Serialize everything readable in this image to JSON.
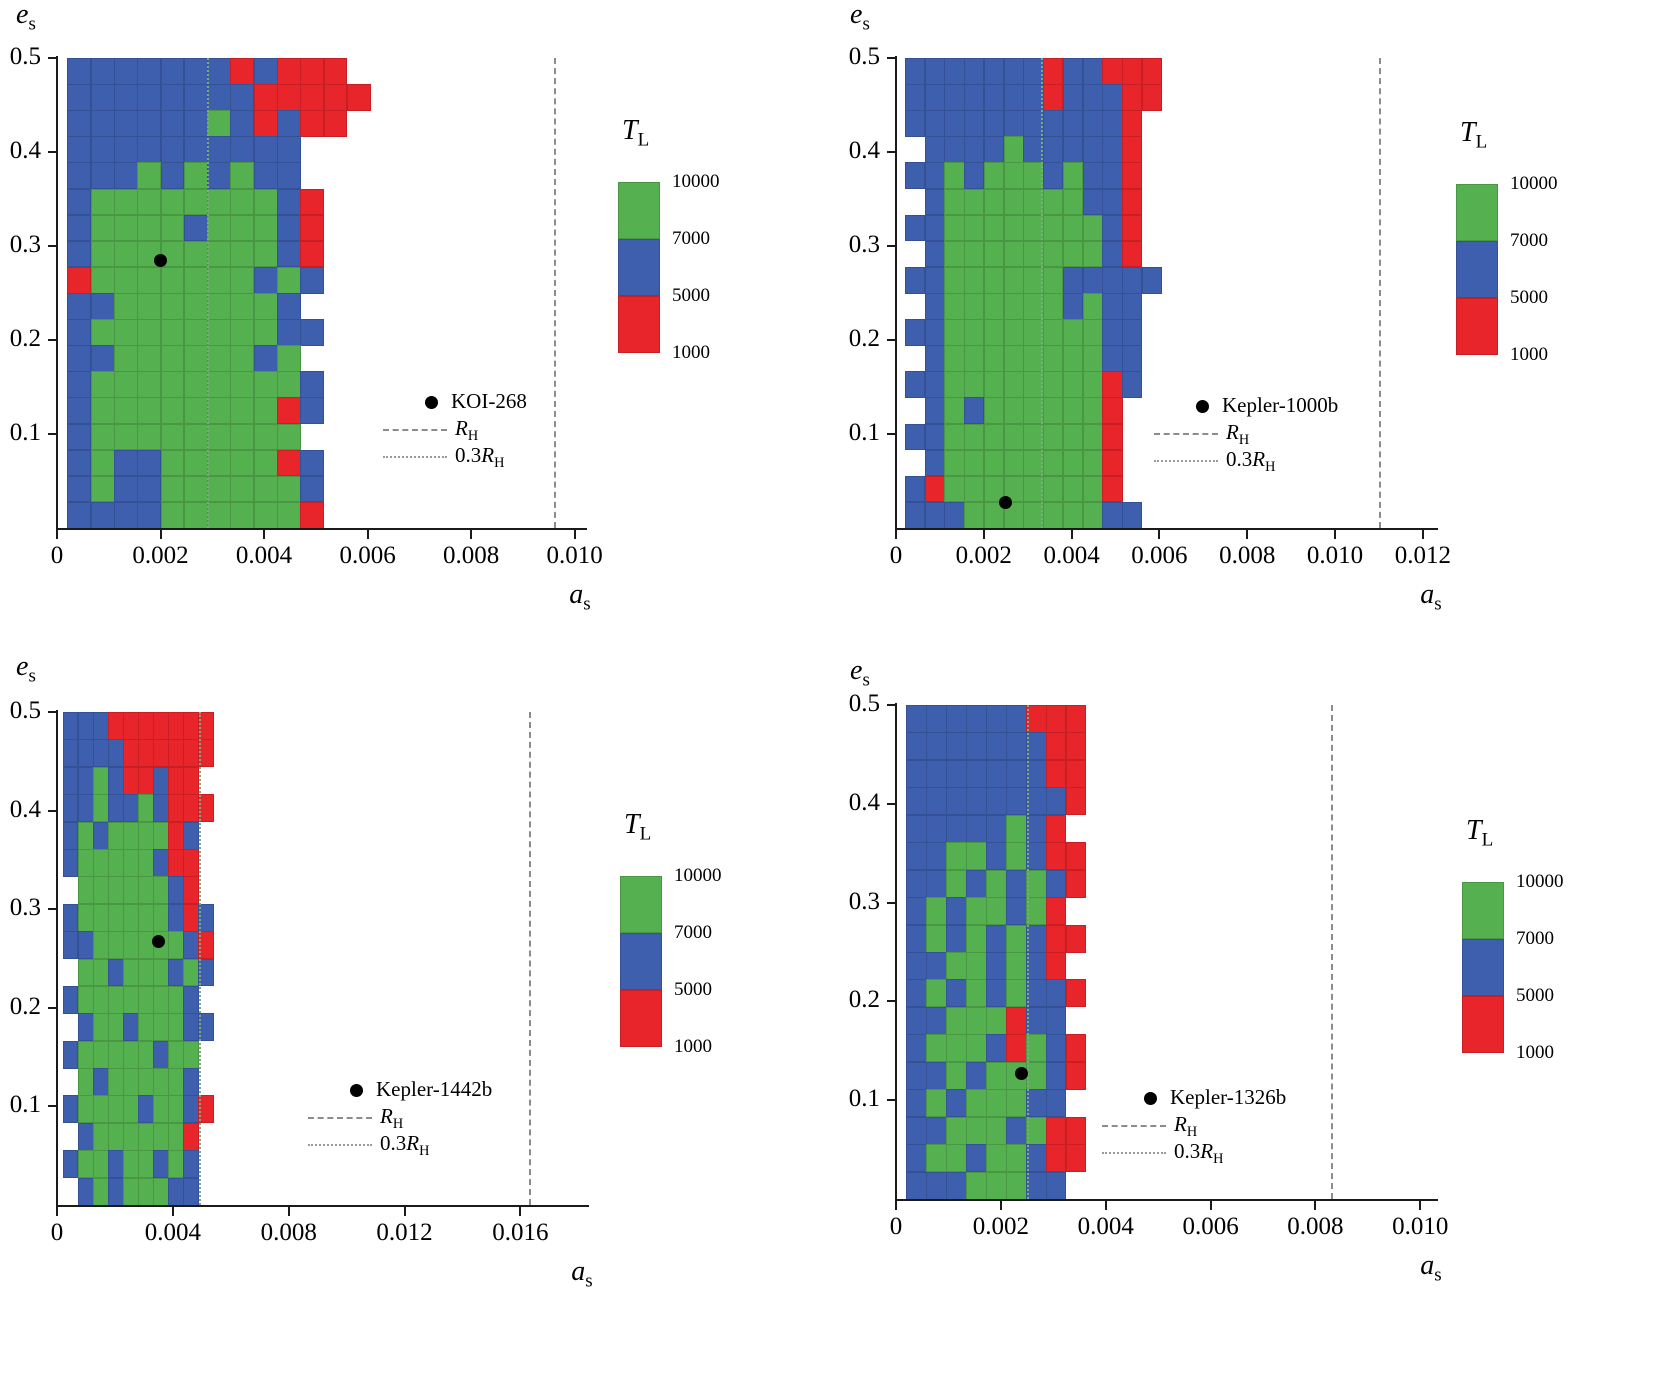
{
  "colors": {
    "background": "#ffffff",
    "green": "#55b04f",
    "blue": "#3d5fae",
    "red": "#e8252b",
    "dot": "#000000",
    "axis": "#1a1a1a",
    "rh_dash": "#8c8c8c",
    "rh03_dot": "#7fa97f"
  },
  "axis_labels": {
    "x": {
      "base": "a",
      "sub": "s"
    },
    "y": {
      "base": "e",
      "sub": "s"
    }
  },
  "legend": {
    "title": {
      "base": "T",
      "sub": "L"
    },
    "levels": [
      "10000",
      "7000",
      "5000",
      "1000"
    ],
    "segment_colors": [
      "green",
      "blue",
      "red"
    ],
    "rh": {
      "pre": "",
      "base": "R",
      "sub": "H"
    },
    "rh03": {
      "pre": "0.3",
      "base": "R",
      "sub": "H"
    }
  },
  "cell_value_ranges": {
    "3": "7000-10000 (green)",
    "2": "5000-7000 (blue)",
    "1": "1000-5000 (red)",
    "0": "none"
  },
  "chart_data": [
    {
      "type": "heatmap",
      "planet": "KOI-268",
      "xlabel": "a_s",
      "ylabel": "e_s",
      "xlim": [
        0,
        0.0102
      ],
      "ylim": [
        0,
        0.5
      ],
      "xticks": [
        0,
        0.002,
        0.004,
        0.006,
        0.008,
        0.01
      ],
      "xtick_labels": [
        "0",
        "0.002",
        "0.004",
        "0.006",
        "0.008",
        "0.010"
      ],
      "yticks": [
        0.1,
        0.2,
        0.3,
        0.4,
        0.5
      ],
      "ytick_labels": [
        "0.1",
        "0.2",
        "0.3",
        "0.4",
        "0.5"
      ],
      "point": {
        "a": 0.002,
        "e": 0.285
      },
      "r_hill": 0.0096,
      "r_hill_03": 0.0029,
      "grid": {
        "x_start": 0.0002,
        "cell_w": 0.00045,
        "rows": [
          "2222222121110",
          "2222222211111",
          "2222223212110",
          "2222222222000",
          "2223232322000",
          "2333333332100",
          "2333323332100",
          "2333333332100",
          "1333333323200",
          "2233333332000",
          "2333333332200",
          "2233333323000",
          "2333333333200",
          "2333333331200",
          "2333333333000",
          "2322333331200",
          "2322333333200",
          "2222333333100"
        ]
      }
    },
    {
      "type": "heatmap",
      "planet": "Kepler-1000b",
      "xlabel": "a_s",
      "ylabel": "e_s",
      "xlim": [
        0,
        0.0123
      ],
      "ylim": [
        0,
        0.5
      ],
      "xticks": [
        0,
        0.002,
        0.004,
        0.006,
        0.008,
        0.01,
        0.012
      ],
      "xtick_labels": [
        "0",
        "0.002",
        "0.004",
        "0.006",
        "0.008",
        "0.010",
        "0.012"
      ],
      "yticks": [
        0.1,
        0.2,
        0.3,
        0.4,
        0.5
      ],
      "ytick_labels": [
        "0.1",
        "0.2",
        "0.3",
        "0.4",
        "0.5"
      ],
      "point": {
        "a": 0.0025,
        "e": 0.027
      },
      "r_hill": 0.011,
      "r_hill_03": 0.0033,
      "grid": {
        "x_start": 0.0002,
        "cell_w": 0.00045,
        "rows": [
          "2222222122111",
          "2222222122211",
          "2222222222210",
          "0222232222210",
          "2232333232210",
          "0233333332210",
          "2233333333210",
          "0233333333210",
          "2233333322222",
          "0233333323220",
          "2233333333220",
          "0233333333220",
          "2233333333120",
          "0232333333100",
          "2233333333100",
          "0233333333100",
          "2133333333100",
          "2223333333220"
        ]
      }
    },
    {
      "type": "heatmap",
      "planet": "Kepler-1442b",
      "xlabel": "a_s",
      "ylabel": "e_s",
      "xlim": [
        0,
        0.0183
      ],
      "ylim": [
        0,
        0.5
      ],
      "xticks": [
        0,
        0.004,
        0.008,
        0.012,
        0.016
      ],
      "xtick_labels": [
        "0",
        "0.004",
        "0.008",
        "0.012",
        "0.016"
      ],
      "yticks": [
        0.1,
        0.2,
        0.3,
        0.4,
        0.5
      ],
      "ytick_labels": [
        "0.1",
        "0.2",
        "0.3",
        "0.4",
        "0.5"
      ],
      "point": {
        "a": 0.0035,
        "e": 0.267
      },
      "r_hill": 0.0163,
      "r_hill_03": 0.0049,
      "grid": {
        "x_start": 0.0002,
        "cell_w": 0.00052,
        "rows": [
          "2221111111000",
          "2222111111000",
          "2232112110000",
          "2232232111000",
          "2323333120000",
          "2333332110000",
          "0333333210000",
          "2333333212000",
          "2233333321000",
          "0332333232000",
          "2333333320000",
          "0233233322000",
          "2333332330000",
          "0323333320000",
          "2333323321000",
          "0233333310000",
          "2332332320000",
          "0232333220000"
        ]
      }
    },
    {
      "type": "heatmap",
      "planet": "Kepler-1326b",
      "xlabel": "a_s",
      "ylabel": "e_s",
      "xlim": [
        0,
        0.0103
      ],
      "ylim": [
        0,
        0.5
      ],
      "xticks": [
        0,
        0.002,
        0.004,
        0.006,
        0.008,
        0.01
      ],
      "xtick_labels": [
        "0",
        "0.002",
        "0.004",
        "0.006",
        "0.008",
        "0.010"
      ],
      "yticks": [
        0.1,
        0.2,
        0.3,
        0.4,
        0.5
      ],
      "ytick_labels": [
        "0.1",
        "0.2",
        "0.3",
        "0.4",
        "0.5"
      ],
      "point": {
        "a": 0.0024,
        "e": 0.127
      },
      "r_hill": 0.0083,
      "r_hill_03": 0.0025,
      "grid": {
        "x_start": 0.0002,
        "cell_w": 0.00038,
        "rows": [
          "2222221110",
          "2222222110",
          "2222222110",
          "2222222210",
          "2222232100",
          "2233232110",
          "2232323210",
          "2323323100",
          "2323232110",
          "2233232100",
          "2323232210",
          "2233312200",
          "2333213210",
          "2232333210",
          "2323332200",
          "2233323110",
          "2332332110",
          "2223332200"
        ]
      }
    }
  ]
}
